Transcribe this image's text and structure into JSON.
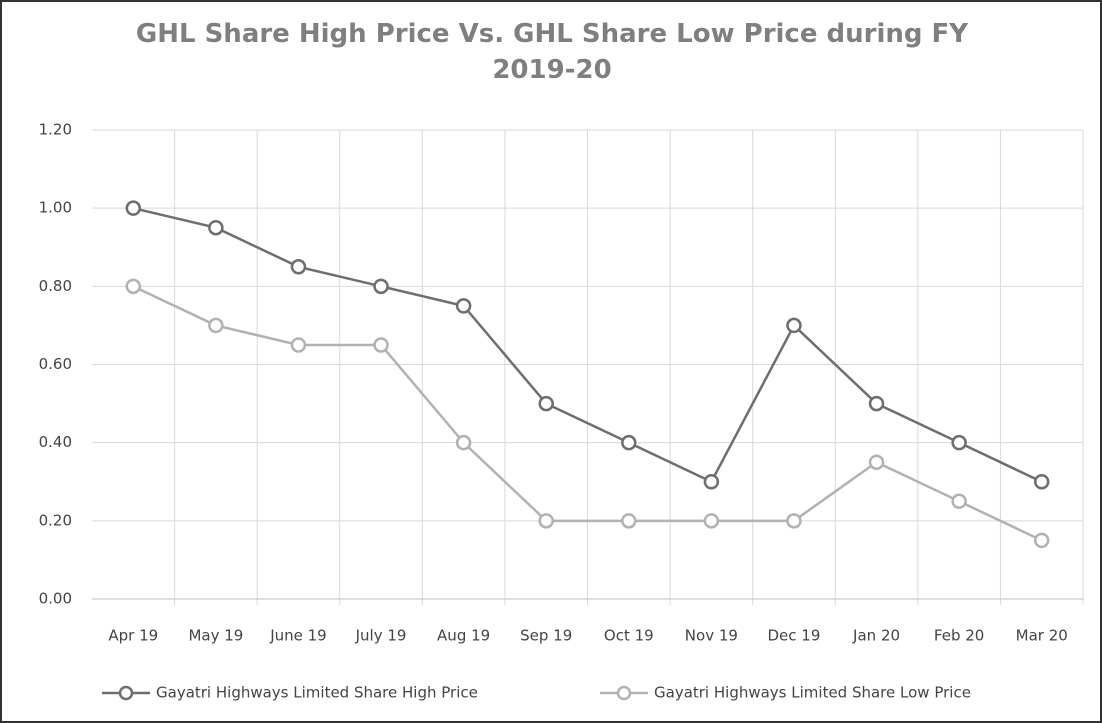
{
  "chart_data": {
    "type": "line",
    "title": "GHL Share High Price Vs. GHL Share Low Price during FY 2019-20",
    "categories": [
      "Apr 19",
      "May 19",
      "June 19",
      "July 19",
      "Aug 19",
      "Sep 19",
      "Oct 19",
      "Nov 19",
      "Dec 19",
      "Jan 20",
      "Feb 20",
      "Mar 20"
    ],
    "series": [
      {
        "name": "Gayatri Highways Limited Share High Price",
        "color": "#6e6e6e",
        "values": [
          1.0,
          0.95,
          0.85,
          0.8,
          0.75,
          0.5,
          0.4,
          0.3,
          0.7,
          0.5,
          0.4,
          0.3
        ]
      },
      {
        "name": "Gayatri Highways Limited Share Low Price",
        "color": "#b2b2b2",
        "values": [
          0.8,
          0.7,
          0.65,
          0.65,
          0.4,
          0.2,
          0.2,
          0.2,
          0.2,
          0.35,
          0.25,
          0.15
        ]
      }
    ],
    "ylim": [
      0,
      1.2
    ],
    "yticks": [
      {
        "value": 0,
        "label": "0.00"
      },
      {
        "value": 0.2,
        "label": "0.20"
      },
      {
        "value": 0.4,
        "label": "0.40"
      },
      {
        "value": 0.6,
        "label": "0.60"
      },
      {
        "value": 0.8,
        "label": "0.80"
      },
      {
        "value": 1.0,
        "label": "1.00"
      },
      {
        "value": 1.2,
        "label": "1.20"
      }
    ],
    "grid": true,
    "legend": "bottom"
  }
}
